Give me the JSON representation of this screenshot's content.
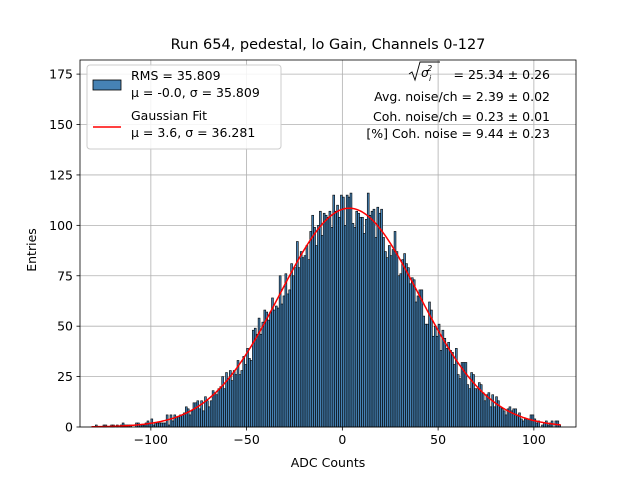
{
  "chart_data": {
    "type": "bar",
    "title": "Run 654, pedestal, lo Gain, Channels 0-127",
    "xlabel": "ADC Counts",
    "ylabel": "Entries",
    "xlim": [
      -137,
      122
    ],
    "ylim": [
      0,
      182
    ],
    "xticks": [
      -100,
      -50,
      0,
      50,
      100
    ],
    "yticks": [
      0,
      25,
      50,
      75,
      100,
      125,
      150,
      175
    ],
    "grid": true,
    "legend_position": "upper-left",
    "colors": {
      "bars": "#4682b4",
      "fit": "#ff0000",
      "grid": "#b0b0b0"
    },
    "histogram": {
      "name": "RMS = 35.809",
      "name_line2": "μ = -0.0, σ = 35.809",
      "mean": -0.0,
      "sigma": 35.809,
      "bin_start": -131,
      "bin_width": 1
    },
    "fit": {
      "name": "Gaussian Fit",
      "name_line2": "μ = 3.6, σ = 36.281",
      "mu": 3.6,
      "sigma": 36.281,
      "amplitude": 108.5,
      "x_range": [
        -131,
        114
      ]
    },
    "annotations": {
      "sqrt_sigma_value": "= 25.34 ± 0.26",
      "avg_noise": "Avg. noise/ch = 2.39 ± 0.02",
      "coh_noise": "Coh. noise/ch = 0.23 ± 0.01",
      "pct_coh_noise": "[%] Coh. noise = 9.44 ± 0.23"
    }
  }
}
